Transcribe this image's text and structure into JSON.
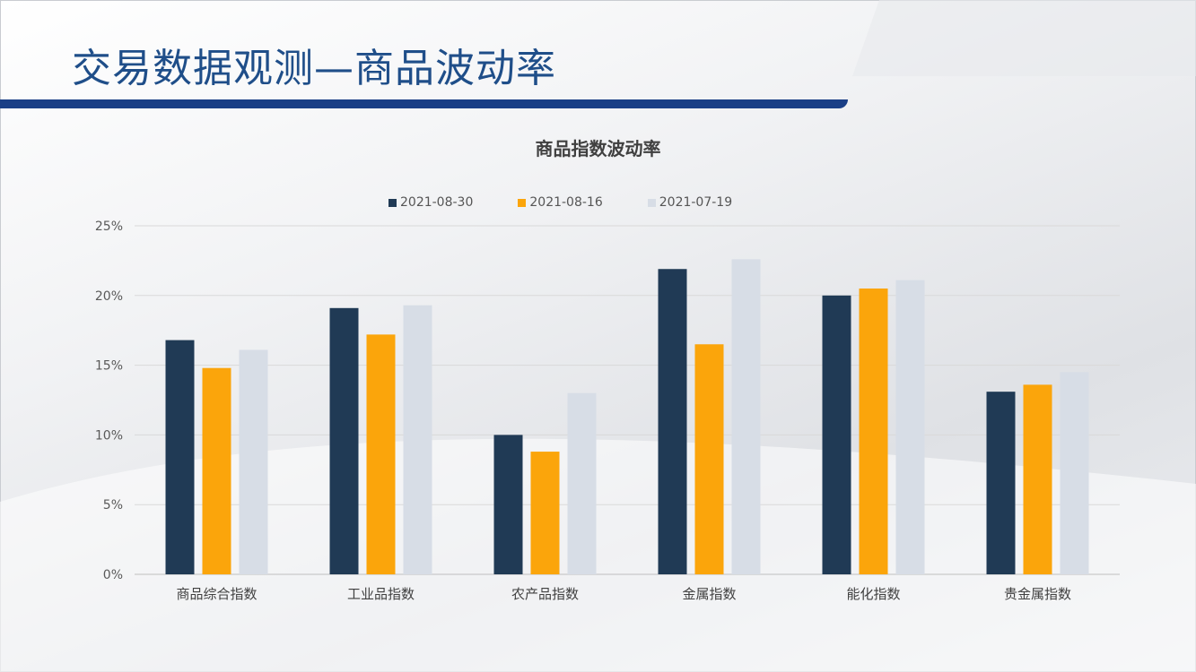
{
  "slide": {
    "title": "交易数据观测—商品波动率",
    "colors": {
      "title": "#1f4e89",
      "rule": "#1a3f86"
    }
  },
  "chart_data": {
    "type": "bar",
    "title": "商品指数波动率",
    "categories": [
      "商品综合指数",
      "工业品指数",
      "农产品指数",
      "金属指数",
      "能化指数",
      "贵金属指数"
    ],
    "series": [
      {
        "name": "2021-08-30",
        "color": "#203a55",
        "values": [
          16.8,
          19.1,
          10.0,
          21.9,
          20.0,
          13.1
        ]
      },
      {
        "name": "2021-08-16",
        "color": "#fba50b",
        "values": [
          14.8,
          17.2,
          8.8,
          16.5,
          20.5,
          13.6
        ]
      },
      {
        "name": "2021-07-19",
        "color": "#d7dde6",
        "values": [
          16.1,
          19.3,
          13.0,
          22.6,
          21.1,
          14.5
        ]
      }
    ],
    "ylim": [
      0,
      25
    ],
    "yticks": [
      "0%",
      "5%",
      "10%",
      "15%",
      "20%",
      "25%"
    ],
    "grid": true,
    "legend_position": "top"
  }
}
